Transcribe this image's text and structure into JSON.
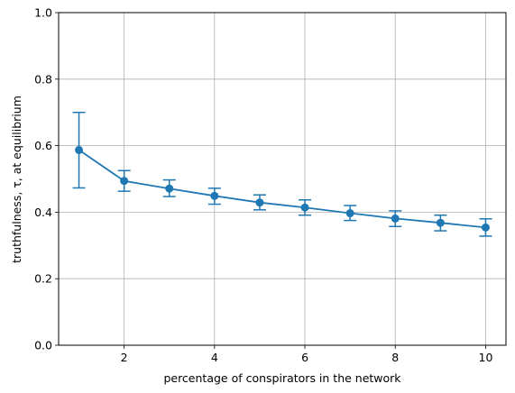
{
  "chart_data": {
    "type": "line",
    "title": "",
    "xlabel": "percentage of conspirators in the network",
    "ylabel": "truthfulness, τ, at equilibrium",
    "xlim": [
      0.55,
      10.45
    ],
    "ylim": [
      0.0,
      1.0
    ],
    "x_ticks": [
      2,
      4,
      6,
      8,
      10
    ],
    "x_tick_labels": [
      "2",
      "4",
      "6",
      "8",
      "10"
    ],
    "y_ticks": [
      0.0,
      0.2,
      0.4,
      0.6,
      0.8,
      1.0
    ],
    "y_tick_labels": [
      "0.0",
      "0.2",
      "0.4",
      "0.6",
      "0.8",
      "1.0"
    ],
    "grid": true,
    "series_color": "#1f77b4",
    "series": [
      {
        "x": [
          1,
          2,
          3,
          4,
          5,
          6,
          7,
          8,
          9,
          10
        ],
        "y": [
          0.587,
          0.494,
          0.471,
          0.449,
          0.429,
          0.414,
          0.397,
          0.381,
          0.368,
          0.354
        ],
        "err_low": [
          0.473,
          0.463,
          0.447,
          0.424,
          0.407,
          0.391,
          0.375,
          0.357,
          0.344,
          0.328
        ],
        "err_high": [
          0.7,
          0.525,
          0.497,
          0.472,
          0.452,
          0.437,
          0.42,
          0.404,
          0.391,
          0.38
        ]
      }
    ]
  }
}
